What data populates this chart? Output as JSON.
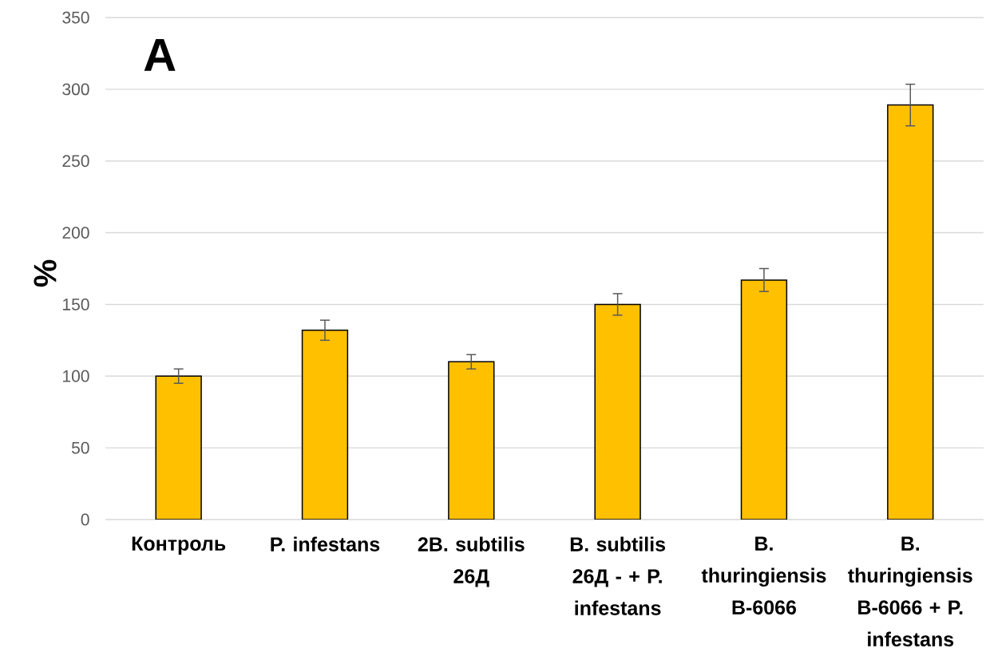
{
  "chart_data": {
    "type": "bar",
    "title": "A",
    "ylabel": "%",
    "categories": [
      "Контроль",
      "P. infestans",
      "2B. subtilis 26Д",
      "B. subtilis 26Д - + P. infestans",
      "B. thuringiensis B-6066",
      "B. thuringiensis B-6066 + P. infestans"
    ],
    "values": [
      100,
      132,
      110,
      150,
      167,
      289
    ],
    "errors": [
      5,
      7,
      5,
      7.5,
      8,
      14.5
    ],
    "color": "#ffc000",
    "ylim": [
      0,
      350
    ],
    "yticks": [
      0,
      50,
      100,
      150,
      200,
      250,
      300,
      350
    ],
    "grid": "y"
  }
}
